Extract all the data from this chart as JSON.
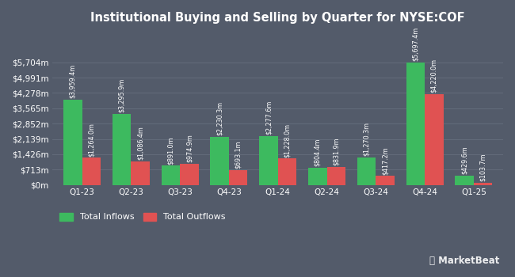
{
  "title": "Institutional Buying and Selling by Quarter for NYSE:COF",
  "quarters": [
    "Q1-23",
    "Q2-23",
    "Q3-23",
    "Q4-23",
    "Q1-24",
    "Q2-24",
    "Q3-24",
    "Q4-24",
    "Q1-25"
  ],
  "inflows": [
    3959.4,
    3295.9,
    891.0,
    2230.3,
    2277.6,
    804.4,
    1270.3,
    5697.4,
    429.6
  ],
  "outflows": [
    1264.0,
    1086.4,
    974.9,
    693.1,
    1228.0,
    831.9,
    417.2,
    4220.0,
    103.7
  ],
  "inflow_labels": [
    "$3,959.4m",
    "$3,295.9m",
    "$891.0m",
    "$2,230.3m",
    "$2,277.6m",
    "$804.4m",
    "$1,270.3m",
    "$5,697.4m",
    "$429.6m"
  ],
  "outflow_labels": [
    "$1,264.0m",
    "$1,086.4m",
    "$974.9m",
    "$693.1m",
    "$1,228.0m",
    "$831.9m",
    "$417.2m",
    "$4,220.0m",
    "$103.7m"
  ],
  "yticks": [
    0,
    713,
    1426,
    2139,
    2852,
    3565,
    4278,
    4991,
    5704
  ],
  "ytick_labels": [
    "$0m",
    "$713m",
    "$1,426m",
    "$2,139m",
    "$2,852m",
    "$3,565m",
    "$4,278m",
    "$4,991m",
    "$5,704m"
  ],
  "ylim": [
    0,
    7200
  ],
  "inflow_color": "#3dba5f",
  "outflow_color": "#e05252",
  "bg_color": "#535b6a",
  "plot_bg_color": "#535b6a",
  "grid_color": "#666f7e",
  "text_color": "#ffffff",
  "bar_width": 0.38,
  "legend_inflow": "Total Inflows",
  "legend_outflow": "Total Outflows",
  "markerbeat_text": "MarketBeat"
}
